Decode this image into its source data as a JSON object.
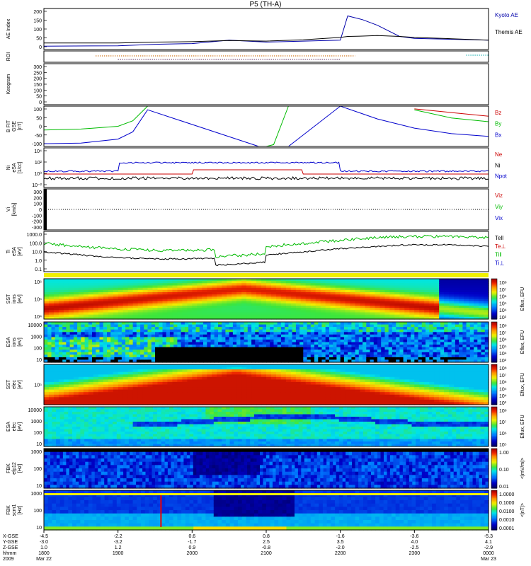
{
  "title": "P5 (TH-A)",
  "panels": [
    {
      "id": "ae",
      "ylabel": [
        "AE Index"
      ],
      "ticks": [
        "200",
        "150",
        "100",
        "50",
        "0"
      ]
    },
    {
      "id": "roi",
      "ylabel": [
        "ROI"
      ],
      "ticks": []
    },
    {
      "id": "keogram",
      "ylabel": [
        "Keogram"
      ],
      "ticks": [
        "300",
        "250",
        "200",
        "150",
        "100",
        "50",
        "0"
      ]
    },
    {
      "id": "bfield",
      "ylabel": [
        "B FIT",
        "GSE",
        "[nT]"
      ],
      "ticks": [
        "100",
        "50",
        "0",
        "-50",
        "-100"
      ]
    },
    {
      "id": "density",
      "ylabel": [
        "Ni",
        "eSA",
        "[1/cc]"
      ],
      "ticks": [
        "10⁴",
        "10²",
        "10⁰",
        "10⁻²"
      ]
    },
    {
      "id": "velocity",
      "ylabel": [
        "Vi",
        "[km/s]"
      ],
      "ticks": [
        "300",
        "200",
        "100",
        "0",
        "-100",
        "-200",
        "-300"
      ]
    },
    {
      "id": "temp",
      "ylabel": [
        "Ti",
        "eSA",
        "[eV]"
      ],
      "ticks": [
        "1000.0",
        "100.0",
        "10.0",
        "1.0",
        "0.1"
      ]
    },
    {
      "id": "sst_i",
      "ylabel": [
        "SST",
        "ions",
        "[eV]"
      ],
      "ticks": [
        "10⁶",
        "10⁵",
        "10⁴"
      ]
    },
    {
      "id": "esa_i",
      "ylabel": [
        "ESA",
        "ions",
        "[eV]"
      ],
      "ticks": [
        "10000",
        "1000",
        "100",
        "10"
      ]
    },
    {
      "id": "sst_e",
      "ylabel": [
        "SST",
        "elec",
        "[eV]"
      ],
      "ticks": [
        "10⁵"
      ]
    },
    {
      "id": "esa_e",
      "ylabel": [
        "ESA",
        "elec",
        "[eV]"
      ],
      "ticks": [
        "10000",
        "1000",
        "100",
        "10"
      ]
    },
    {
      "id": "fbk_e",
      "ylabel": [
        "FBK",
        "efp12",
        "[Hz]"
      ],
      "ticks": [
        "1000",
        "100",
        "10"
      ]
    },
    {
      "id": "fbk_b",
      "ylabel": [
        "FBK",
        "scm1",
        "[Hz]"
      ],
      "ticks": [
        "1000",
        "100",
        "10"
      ]
    }
  ],
  "right_labels": {
    "ae": [
      {
        "text": "Kyoto AE",
        "color": "#0000aa"
      },
      {
        "text": "Themis AE",
        "color": "#000000"
      }
    ],
    "bfield": [
      {
        "text": "Bz",
        "color": "#cc0000"
      },
      {
        "text": "By",
        "color": "#00bb00"
      },
      {
        "text": "Bx",
        "color": "#0000cc"
      }
    ],
    "density": [
      {
        "text": "Ne",
        "color": "#cc0000"
      },
      {
        "text": "Ni",
        "color": "#000000"
      },
      {
        "text": "Npot",
        "color": "#0000cc"
      }
    ],
    "velocity": [
      {
        "text": "Viz",
        "color": "#cc0000"
      },
      {
        "text": "Viy",
        "color": "#00bb00"
      },
      {
        "text": "Vix",
        "color": "#0000cc"
      }
    ],
    "temp": [
      {
        "text": "Tell",
        "color": "#000000"
      },
      {
        "text": "Te⊥",
        "color": "#cc0000"
      },
      {
        "text": "Ti‖",
        "color": "#00bb00"
      },
      {
        "text": "Ti⊥",
        "color": "#0000cc"
      }
    ]
  },
  "colorbars": [
    {
      "label": "Eflux, EFU",
      "ticks": [
        "10⁸",
        "10⁷",
        "10⁶",
        "10⁵",
        "10⁴",
        "10³"
      ],
      "panels": [
        "sst_i"
      ]
    },
    {
      "label": "Eflux, EFU",
      "ticks": [
        "10⁸",
        "10⁷",
        "10⁶",
        "10⁵",
        "10⁴",
        "10³"
      ],
      "panels": [
        "esa_i"
      ]
    },
    {
      "label": "Eflux, EFU",
      "ticks": [
        "10⁸",
        "10⁷",
        "10⁶",
        "10⁵",
        "10⁴",
        "10³"
      ],
      "panels": [
        "sst_e"
      ]
    },
    {
      "label": "Eflux, EFU",
      "ticks": [
        "10⁸",
        "10⁷",
        "10⁶",
        "10⁵"
      ],
      "panels": [
        "esa_e"
      ]
    },
    {
      "label": "<|mV/m|>",
      "ticks": [
        "1.00",
        "0.10",
        "0.01"
      ],
      "panels": [
        "fbk_e"
      ]
    },
    {
      "label": "<|nT|>",
      "ticks": [
        "1.0000",
        "0.1000",
        "0.0100",
        "0.0010",
        "0.0001"
      ],
      "panels": [
        "fbk_b"
      ]
    }
  ],
  "x_axis": {
    "row_labels": [
      "X-GSE",
      "Y-GSE",
      "Z-GSE",
      "hhmm",
      "2009"
    ],
    "columns": [
      {
        "xgse": "-4.5",
        "ygse": "-3.0",
        "zgse": "1.0",
        "hhmm": "1800",
        "date": "Mar 22"
      },
      {
        "xgse": "-2.2",
        "ygse": "-3.2",
        "zgse": "1.2",
        "hhmm": "1900",
        "date": ""
      },
      {
        "xgse": "0.6",
        "ygse": "-1.7",
        "zgse": "0.9",
        "hhmm": "2000",
        "date": ""
      },
      {
        "xgse": "0.8",
        "ygse": "2.5",
        "zgse": "-0.8",
        "hhmm": "2100",
        "date": ""
      },
      {
        "xgse": "-1.6",
        "ygse": "3.5",
        "zgse": "-2.0",
        "hhmm": "2200",
        "date": ""
      },
      {
        "xgse": "-3.6",
        "ygse": "4.0",
        "zgse": "-2.5",
        "hhmm": "2300",
        "date": ""
      },
      {
        "xgse": "-5.3",
        "ygse": "4.1",
        "zgse": "-2.9",
        "hhmm": "0000",
        "date": "Mar 23"
      }
    ]
  },
  "chart_data": [
    {
      "type": "line",
      "title": "",
      "ylabel": "AE Index",
      "x_hours": [
        18,
        19,
        19.5,
        20,
        20.5,
        21,
        21.5,
        22,
        22.1,
        22.3,
        22.5,
        22.8,
        23,
        23.5,
        24
      ],
      "series": [
        {
          "name": "Kyoto AE",
          "values": [
            8,
            10,
            18,
            22,
            40,
            30,
            35,
            40,
            170,
            150,
            120,
            60,
            50,
            45,
            40
          ]
        },
        {
          "name": "Themis AE",
          "values": [
            25,
            25,
            30,
            32,
            38,
            35,
            42,
            55,
            60,
            62,
            65,
            60,
            55,
            48,
            40
          ]
        }
      ],
      "ylim": [
        -10,
        210
      ]
    },
    {
      "type": "line",
      "ylabel": "B FIT GSE [nT]",
      "x_hours": [
        18,
        18.5,
        19,
        19.2,
        19.4,
        20.9,
        21.0,
        21.1,
        21.3,
        22,
        22.5,
        23,
        23.5,
        24
      ],
      "series": [
        {
          "name": "Bz",
          "values": [
            null,
            null,
            null,
            null,
            null,
            null,
            null,
            null,
            null,
            null,
            null,
            95,
            75,
            55
          ]
        },
        {
          "name": "By",
          "values": [
            -20,
            -15,
            0,
            30,
            110,
            null,
            -110,
            -100,
            110,
            null,
            null,
            90,
            45,
            25
          ]
        },
        {
          "name": "Bx",
          "values": [
            -95,
            -92,
            -70,
            -30,
            90,
            -110,
            null,
            null,
            -110,
            110,
            40,
            -10,
            -40,
            -55
          ]
        }
      ],
      "ylim": [
        -110,
        110
      ]
    },
    {
      "type": "heatmap",
      "title": "",
      "ylabel": "SST ions [eV]",
      "colorbar": "Eflux, EFU"
    },
    {
      "type": "heatmap",
      "ylabel": "ESA ions [eV]",
      "colorbar": "Eflux, EFU"
    },
    {
      "type": "heatmap",
      "ylabel": "SST elec [eV]",
      "colorbar": "Eflux, EFU"
    },
    {
      "type": "heatmap",
      "ylabel": "ESA elec [eV]",
      "colorbar": "Eflux, EFU"
    },
    {
      "type": "heatmap",
      "ylabel": "FBK efp12 [Hz]",
      "colorbar": "<|mV/m|>"
    },
    {
      "type": "heatmap",
      "ylabel": "FBK scm1 [Hz]",
      "colorbar": "<|nT|>"
    }
  ]
}
